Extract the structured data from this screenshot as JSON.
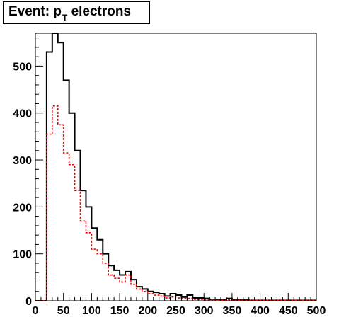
{
  "chart_data": {
    "type": "histogram",
    "title_parts": {
      "main": "Event: p",
      "sub": "T",
      "rest": " electrons"
    },
    "xlim": [
      0,
      500
    ],
    "ylim": [
      0,
      570
    ],
    "x_ticks": [
      0,
      50,
      100,
      150,
      200,
      250,
      300,
      350,
      400,
      450,
      500
    ],
    "y_ticks": [
      0,
      100,
      200,
      300,
      400,
      500
    ],
    "bin_width": 10,
    "bin_start": 0,
    "grid": false,
    "series": [
      {
        "style": "solid",
        "color": "#000000",
        "values": [
          0,
          0,
          530,
          570,
          550,
          470,
          400,
          320,
          235,
          200,
          155,
          130,
          100,
          75,
          65,
          55,
          62,
          45,
          30,
          25,
          20,
          18,
          15,
          10,
          15,
          12,
          8,
          12,
          6,
          6,
          5,
          3,
          3,
          2,
          5,
          2,
          2,
          2,
          1,
          1,
          1,
          1,
          1,
          1,
          1,
          1,
          1,
          1,
          1,
          1
        ]
      },
      {
        "style": "dashed",
        "color": "#ff0000",
        "values": [
          0,
          0,
          355,
          415,
          375,
          315,
          290,
          235,
          170,
          145,
          110,
          100,
          80,
          55,
          48,
          40,
          55,
          35,
          25,
          20,
          15,
          12,
          10,
          6,
          8,
          6,
          5,
          5,
          3,
          3,
          2,
          2,
          1,
          1,
          2,
          1,
          1,
          1,
          1,
          1,
          1,
          1,
          1,
          1,
          1,
          1,
          1,
          1,
          1,
          1
        ]
      }
    ]
  }
}
